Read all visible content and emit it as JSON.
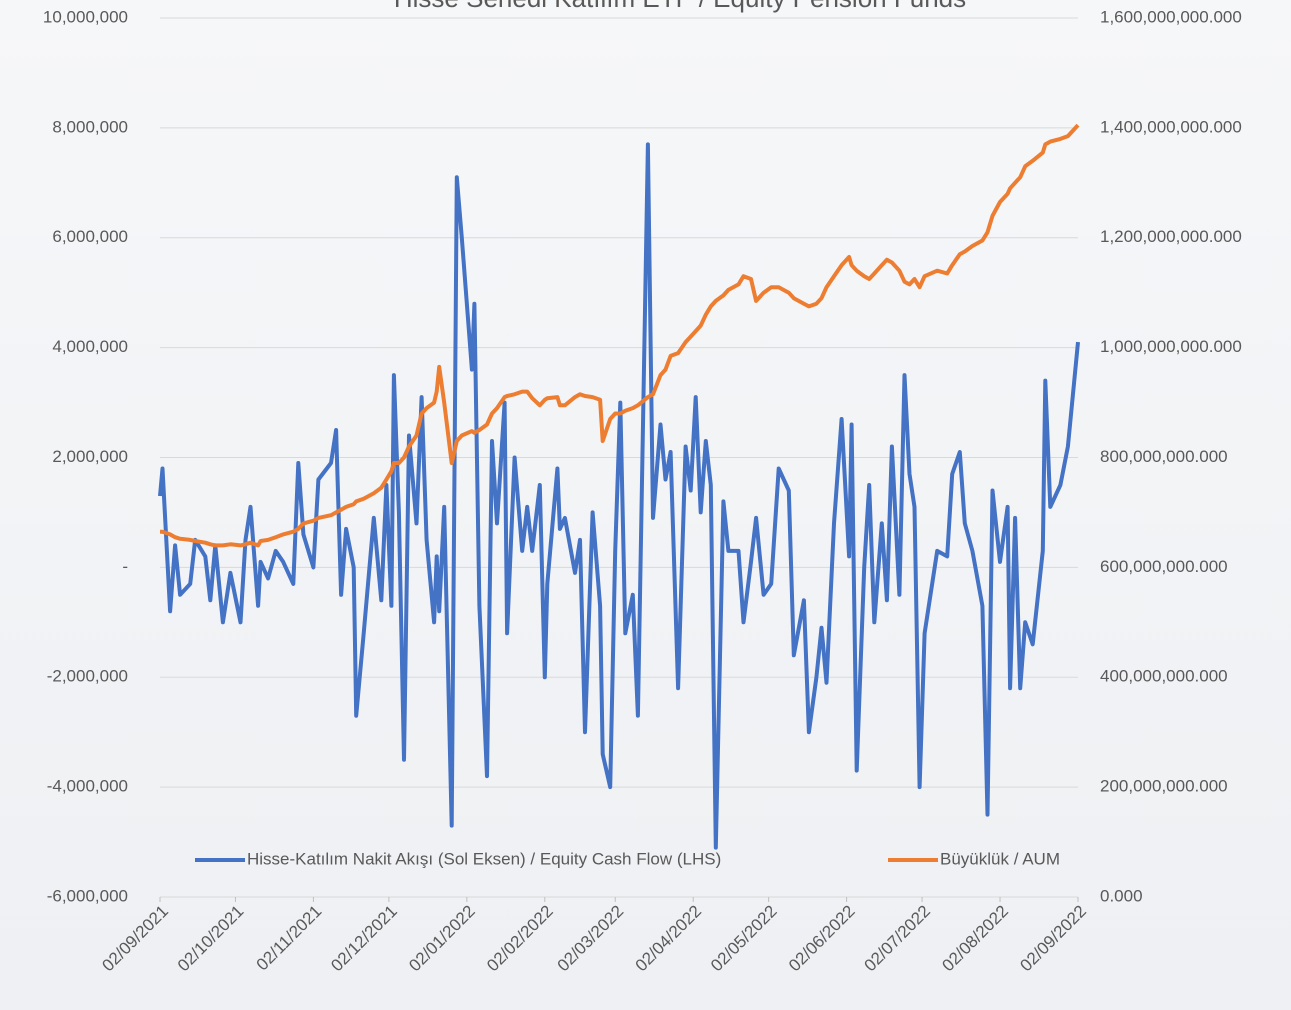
{
  "chart_data": {
    "type": "line",
    "title": "Hisse Senedi Katılım ETF / Equity Pension Funds",
    "x": [
      "2021-09-02",
      "2021-09-03",
      "2021-09-06",
      "2021-09-08",
      "2021-09-10",
      "2021-09-14",
      "2021-09-16",
      "2021-09-20",
      "2021-09-22",
      "2021-09-24",
      "2021-09-27",
      "2021-09-30",
      "2021-10-04",
      "2021-10-06",
      "2021-10-08",
      "2021-10-11",
      "2021-10-12",
      "2021-10-15",
      "2021-10-18",
      "2021-10-21",
      "2021-10-25",
      "2021-10-27",
      "2021-10-29",
      "2021-11-02",
      "2021-11-04",
      "2021-11-09",
      "2021-11-11",
      "2021-11-13",
      "2021-11-15",
      "2021-11-18",
      "2021-11-19",
      "2021-11-22",
      "2021-11-26",
      "2021-11-29",
      "2021-12-01",
      "2021-12-03",
      "2021-12-04",
      "2021-12-06",
      "2021-12-08",
      "2021-12-10",
      "2021-12-13",
      "2021-12-15",
      "2021-12-17",
      "2021-12-20",
      "2021-12-21",
      "2021-12-22",
      "2021-12-24",
      "2021-12-27",
      "2021-12-29",
      "2021-12-31",
      "2022-01-04",
      "2022-01-05",
      "2022-01-07",
      "2022-01-10",
      "2022-01-12",
      "2022-01-14",
      "2022-01-17",
      "2022-01-18",
      "2022-01-21",
      "2022-01-24",
      "2022-01-26",
      "2022-01-28",
      "2022-01-31",
      "2022-02-02",
      "2022-02-03",
      "2022-02-07",
      "2022-02-08",
      "2022-02-10",
      "2022-02-14",
      "2022-02-16",
      "2022-02-18",
      "2022-02-21",
      "2022-02-24",
      "2022-02-25",
      "2022-02-28",
      "2022-03-02",
      "2022-03-04",
      "2022-03-06",
      "2022-03-09",
      "2022-03-11",
      "2022-03-15",
      "2022-03-17",
      "2022-03-20",
      "2022-03-22",
      "2022-03-24",
      "2022-03-27",
      "2022-03-30",
      "2022-04-01",
      "2022-04-03",
      "2022-04-05",
      "2022-04-07",
      "2022-04-09",
      "2022-04-11",
      "2022-04-14",
      "2022-04-16",
      "2022-04-20",
      "2022-04-22",
      "2022-04-25",
      "2022-04-27",
      "2022-04-30",
      "2022-05-03",
      "2022-05-06",
      "2022-05-10",
      "2022-05-12",
      "2022-05-16",
      "2022-05-18",
      "2022-05-21",
      "2022-05-23",
      "2022-05-25",
      "2022-05-28",
      "2022-05-31",
      "2022-06-03",
      "2022-06-04",
      "2022-06-06",
      "2022-06-09",
      "2022-06-11",
      "2022-06-13",
      "2022-06-16",
      "2022-06-18",
      "2022-06-20",
      "2022-06-23",
      "2022-06-25",
      "2022-06-27",
      "2022-06-29",
      "2022-07-01",
      "2022-07-03",
      "2022-07-08",
      "2022-07-12",
      "2022-07-14",
      "2022-07-17",
      "2022-07-19",
      "2022-07-22",
      "2022-07-26",
      "2022-07-28",
      "2022-07-30",
      "2022-08-02",
      "2022-08-05",
      "2022-08-06",
      "2022-08-08",
      "2022-08-10",
      "2022-08-12",
      "2022-08-15",
      "2022-08-19",
      "2022-08-20",
      "2022-08-22",
      "2022-08-26",
      "2022-08-29",
      "2022-09-02"
    ],
    "series": [
      {
        "name": "Hisse-Katılım Nakit Akışı (Sol Eksen) / Equity Cash Flow (LHS)",
        "color": "#4472c4",
        "axis": "y",
        "values": [
          1300000,
          1800000,
          -800000,
          400000,
          -500000,
          -300000,
          500000,
          200000,
          -600000,
          400000,
          -1000000,
          -100000,
          -1000000,
          500000,
          1100000,
          -700000,
          100000,
          -200000,
          300000,
          100000,
          -300000,
          1900000,
          600000,
          0,
          1600000,
          1900000,
          2500000,
          -500000,
          700000,
          0,
          -2700000,
          -1200000,
          900000,
          -600000,
          1500000,
          -700000,
          3500000,
          1000000,
          -3500000,
          2400000,
          800000,
          3100000,
          500000,
          -1000000,
          200000,
          -800000,
          1100000,
          -4700000,
          7100000,
          6000000,
          3600000,
          4800000,
          -700000,
          -3800000,
          2300000,
          800000,
          3000000,
          -1200000,
          2000000,
          300000,
          1100000,
          300000,
          1500000,
          -2000000,
          -300000,
          1800000,
          700000,
          900000,
          -100000,
          500000,
          -3000000,
          1000000,
          -700000,
          -3400000,
          -4000000,
          300000,
          3000000,
          -1200000,
          -500000,
          -2700000,
          7700000,
          900000,
          2600000,
          1600000,
          2100000,
          -2200000,
          2200000,
          1400000,
          3100000,
          1000000,
          2300000,
          1500000,
          -5100000,
          1200000,
          300000,
          300000,
          -1000000,
          100000,
          900000,
          -500000,
          -300000,
          1800000,
          1400000,
          -1600000,
          -600000,
          -3000000,
          -2000000,
          -1100000,
          -2100000,
          800000,
          2700000,
          200000,
          2600000,
          -3700000,
          0,
          1500000,
          -1000000,
          800000,
          -600000,
          2200000,
          -500000,
          3500000,
          1700000,
          1100000,
          -4000000,
          -1200000,
          300000,
          200000,
          1700000,
          2100000,
          800000,
          300000,
          -700000,
          -4500000,
          1400000,
          100000,
          1100000,
          -2200000,
          900000,
          -2200000,
          -1000000,
          -1400000,
          300000,
          3400000,
          1100000,
          1500000,
          2200000,
          4100000
        ]
      },
      {
        "name": "Büyüklük / AUM",
        "color": "#ed7d31",
        "axis": "y2",
        "values": [
          665000000000,
          665000000000,
          660000000000,
          655000000000,
          652000000000,
          650000000000,
          648000000000,
          645000000000,
          642000000000,
          640000000000,
          640000000000,
          642000000000,
          640000000000,
          642000000000,
          645000000000,
          640000000000,
          648000000000,
          650000000000,
          655000000000,
          660000000000,
          665000000000,
          670000000000,
          680000000000,
          685000000000,
          690000000000,
          695000000000,
          700000000000,
          705000000000,
          710000000000,
          715000000000,
          720000000000,
          725000000000,
          735000000000,
          745000000000,
          760000000000,
          775000000000,
          790000000000,
          790000000000,
          800000000000,
          820000000000,
          840000000000,
          880000000000,
          890000000000,
          900000000000,
          920000000000,
          965000000000,
          900000000000,
          790000000000,
          830000000000,
          840000000000,
          848000000000,
          845000000000,
          850000000000,
          860000000000,
          880000000000,
          890000000000,
          910000000000,
          912000000000,
          915000000000,
          920000000000,
          920000000000,
          908000000000,
          895000000000,
          905000000000,
          908000000000,
          910000000000,
          895000000000,
          895000000000,
          910000000000,
          915000000000,
          912000000000,
          910000000000,
          905000000000,
          830000000000,
          870000000000,
          880000000000,
          880000000000,
          885000000000,
          890000000000,
          895000000000,
          910000000000,
          915000000000,
          950000000000,
          960000000000,
          985000000000,
          990000000000,
          1010000000000,
          1020000000000,
          1030000000000,
          1040000000000,
          1060000000000,
          1075000000000,
          1085000000000,
          1095000000000,
          1105000000000,
          1115000000000,
          1130000000000,
          1125000000000,
          1085000000000,
          1100000000000,
          1110000000000,
          1110000000000,
          1100000000000,
          1090000000000,
          1080000000000,
          1075000000000,
          1080000000000,
          1090000000000,
          1110000000000,
          1130000000000,
          1150000000000,
          1165000000000,
          1150000000000,
          1140000000000,
          1130000000000,
          1125000000000,
          1135000000000,
          1150000000000,
          1160000000000,
          1155000000000,
          1140000000000,
          1120000000000,
          1115000000000,
          1125000000000,
          1110000000000,
          1130000000000,
          1140000000000,
          1135000000000,
          1150000000000,
          1170000000000,
          1175000000000,
          1185000000000,
          1195000000000,
          1210000000000,
          1240000000000,
          1265000000000,
          1280000000000,
          1290000000000,
          1300000000000,
          1310000000000,
          1330000000000,
          1340000000000,
          1355000000000,
          1370000000000,
          1375000000000,
          1380000000000,
          1385000000000,
          1405000000000
        ]
      }
    ],
    "xlim": [
      "2021-09-02",
      "2022-09-02"
    ],
    "xticks": [
      {
        "value": "2021-09-02",
        "label": "02/09/2021"
      },
      {
        "value": "2021-10-02",
        "label": "02/10/2021"
      },
      {
        "value": "2021-11-02",
        "label": "02/11/2021"
      },
      {
        "value": "2021-12-02",
        "label": "02/12/2021"
      },
      {
        "value": "2022-01-02",
        "label": "02/01/2022"
      },
      {
        "value": "2022-02-02",
        "label": "02/02/2022"
      },
      {
        "value": "2022-03-02",
        "label": "02/03/2022"
      },
      {
        "value": "2022-04-02",
        "label": "02/04/2022"
      },
      {
        "value": "2022-05-02",
        "label": "02/05/2022"
      },
      {
        "value": "2022-06-02",
        "label": "02/06/2022"
      },
      {
        "value": "2022-07-02",
        "label": "02/07/2022"
      },
      {
        "value": "2022-08-02",
        "label": "02/08/2022"
      },
      {
        "value": "2022-09-02",
        "label": "02/09/2022"
      }
    ],
    "ylim": [
      -6000000,
      10000000
    ],
    "yticks": [
      {
        "value": -6000000,
        "label": "-6,000,000"
      },
      {
        "value": -4000000,
        "label": "-4,000,000"
      },
      {
        "value": -2000000,
        "label": "-2,000,000"
      },
      {
        "value": 0,
        "label": "-"
      },
      {
        "value": 2000000,
        "label": "2,000,000"
      },
      {
        "value": 4000000,
        "label": "4,000,000"
      },
      {
        "value": 6000000,
        "label": "6,000,000"
      },
      {
        "value": 8000000,
        "label": "8,000,000"
      },
      {
        "value": 10000000,
        "label": "10,000,000"
      }
    ],
    "y2lim": [
      0,
      1600000000000
    ],
    "y2ticks": [
      {
        "value": 0,
        "label": "0.000"
      },
      {
        "value": 200000000000,
        "label": "200,000,000.000"
      },
      {
        "value": 400000000000,
        "label": "400,000,000.000"
      },
      {
        "value": 600000000000,
        "label": "600,000,000.000"
      },
      {
        "value": 800000000000,
        "label": "800,000,000.000"
      },
      {
        "value": 1000000000000,
        "label": "1,000,000,000.000"
      },
      {
        "value": 1200000000000,
        "label": "1,200,000,000.000"
      },
      {
        "value": 1400000000000,
        "label": "1,400,000,000.000"
      },
      {
        "value": 1600000000000,
        "label": "1,600,000,000.000"
      }
    ],
    "grid": true,
    "legend": "bottom"
  }
}
